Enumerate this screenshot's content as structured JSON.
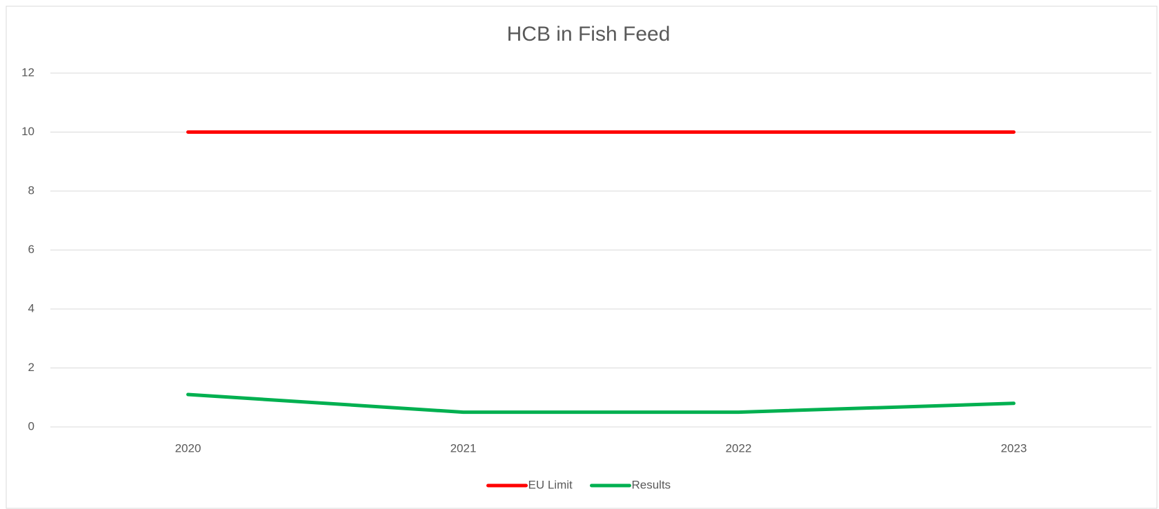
{
  "chart_data": {
    "type": "line",
    "title": "HCB in Fish Feed",
    "categories": [
      "2020",
      "2021",
      "2022",
      "2023"
    ],
    "series": [
      {
        "name": "EU Limit",
        "color": "#ff0000",
        "values": [
          10,
          10,
          10,
          10
        ]
      },
      {
        "name": "Results",
        "color": "#00b050",
        "values": [
          1.1,
          0.5,
          0.5,
          0.8
        ]
      }
    ],
    "ylim": [
      0,
      12
    ],
    "yticks": [
      0,
      2,
      4,
      6,
      8,
      10,
      12
    ],
    "grid": true,
    "legend": "bottom"
  }
}
